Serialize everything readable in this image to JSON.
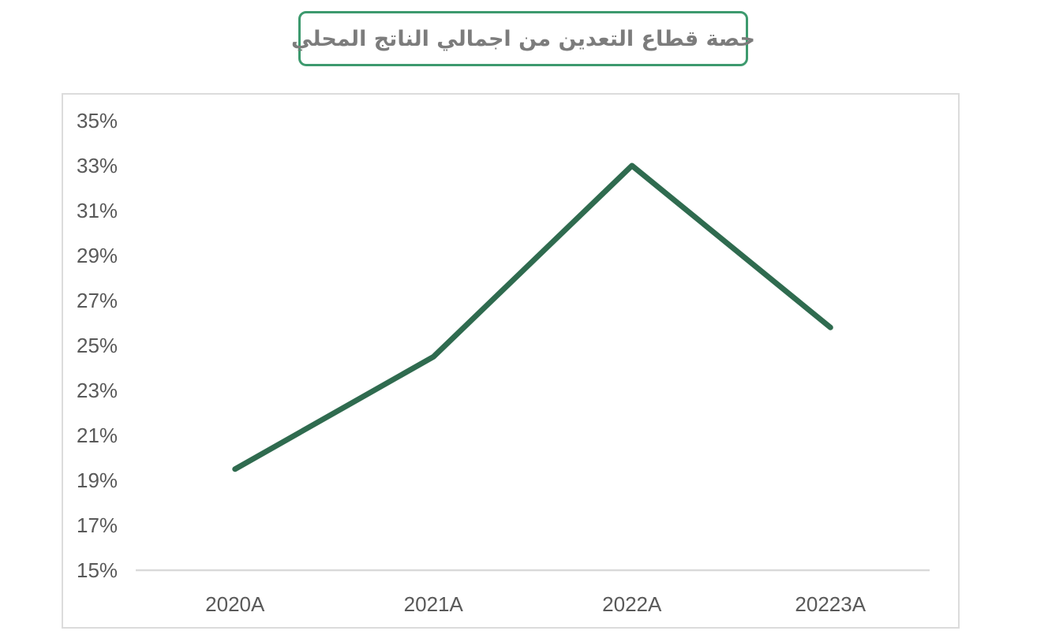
{
  "title": "حصة قطاع التعدين من اجمالي الناتج المحلي",
  "colors": {
    "line": "#2F6B4F",
    "title_border": "#3D9A6E",
    "title_text": "#7C7C7C",
    "axis_text": "#595959",
    "axis_line": "#D9D9D9",
    "card_border": "#DCDCDC"
  },
  "chart_data": {
    "type": "line",
    "title": "حصة قطاع التعدين من اجمالي الناتج المحلي",
    "categories": [
      "2020A",
      "2021A",
      "2022A",
      "20223A"
    ],
    "series": [
      {
        "name": "حصة قطاع التعدين من اجمالي الناتج المحلي",
        "values": [
          19.5,
          24.5,
          33.0,
          25.8
        ]
      }
    ],
    "xlabel": "",
    "ylabel": "",
    "ylim": [
      15,
      35
    ],
    "ytick_step": 2,
    "yticks": [
      "35%",
      "33%",
      "31%",
      "29%",
      "27%",
      "25%",
      "23%",
      "21%",
      "19%",
      "17%",
      "15%"
    ],
    "grid": false,
    "legend_position": "none"
  }
}
